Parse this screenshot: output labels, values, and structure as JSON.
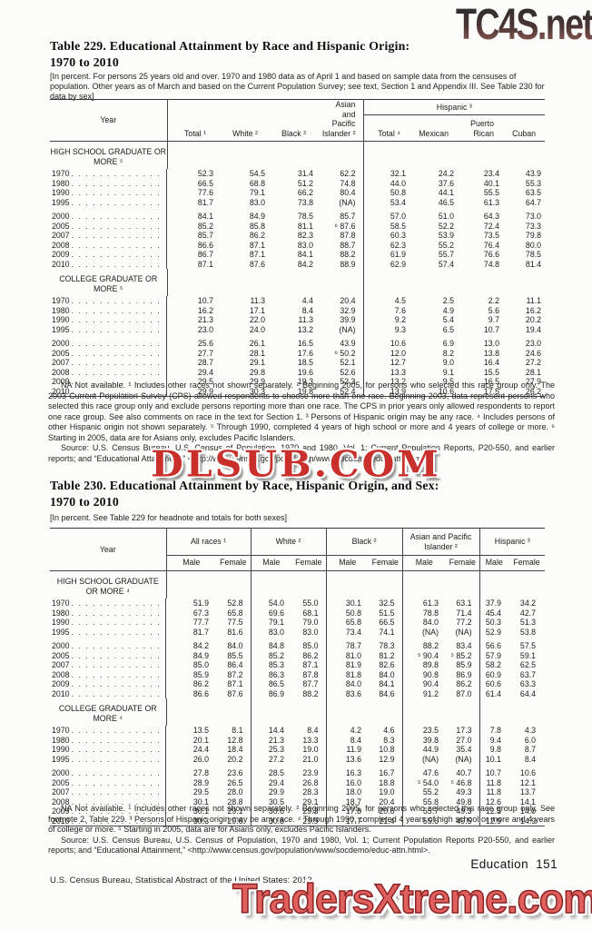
{
  "watermarks": {
    "top": "TC4S.net",
    "middle": "DLSUB.COM",
    "bottom": "TradersXtreme.com"
  },
  "page": {
    "page_label": "Education  151",
    "footer": "U.S. Census Bureau, Statistical Abstract of the United States: 2012"
  },
  "table229": {
    "title_line1": "Table 229. Educational Attainment by Race and Hispanic Origin:",
    "title_line2": "1970 to 2010",
    "headnote": "[In percent. For persons 25 years old and over. 1970 and 1980 data as of April 1 and based on sample data from the censuses of population. Other years as of March and based on the Current Population Survey; see text, Section 1 and Appendix III. See Table 230 for data by sex]",
    "col_year": "Year",
    "columns": [
      "Total ¹",
      "White ²",
      "Black ²",
      "Asian and Pacific Islander ²"
    ],
    "hispanic_label": "Hispanic ³",
    "hispanic_columns": [
      "Total ⁴",
      "Mexican",
      "Puerto Rican",
      "Cuban"
    ],
    "sections": [
      {
        "label": "HIGH SCHOOL GRADUATE OR MORE ⁵",
        "rows": [
          {
            "year": "1970",
            "values": [
              "52.3",
              "54.5",
              "31.4",
              "62.2",
              "32.1",
              "24.2",
              "23.4",
              "43.9"
            ]
          },
          {
            "year": "1980",
            "values": [
              "66.5",
              "68.8",
              "51.2",
              "74.8",
              "44.0",
              "37.6",
              "40.1",
              "55.3"
            ]
          },
          {
            "year": "1990",
            "values": [
              "77.6",
              "79.1",
              "66.2",
              "80.4",
              "50.8",
              "44.1",
              "55.5",
              "63.5"
            ]
          },
          {
            "year": "1995",
            "values": [
              "81.7",
              "83.0",
              "73.8",
              "(NA)",
              "53.4",
              "46.5",
              "61.3",
              "64.7"
            ]
          },
          {
            "year": "2000",
            "values": [
              "84.1",
              "84.9",
              "78.5",
              "85.7",
              "57.0",
              "51.0",
              "64.3",
              "73.0"
            ]
          },
          {
            "year": "2005",
            "values": [
              "85.2",
              "85.8",
              "81.1",
              "⁶ 87.6",
              "58.5",
              "52.2",
              "72.4",
              "73.3"
            ]
          },
          {
            "year": "2007",
            "values": [
              "85.7",
              "86.2",
              "82.3",
              "87.8",
              "60.3",
              "53.9",
              "73.5",
              "79.8"
            ]
          },
          {
            "year": "2008",
            "values": [
              "86.6",
              "87.1",
              "83.0",
              "88.7",
              "62.3",
              "55.2",
              "76.4",
              "80.0"
            ]
          },
          {
            "year": "2009",
            "values": [
              "86.7",
              "87.1",
              "84.1",
              "88.2",
              "61.9",
              "55.7",
              "76.6",
              "78.5"
            ]
          },
          {
            "year": "2010",
            "values": [
              "87.1",
              "87.6",
              "84.2",
              "88.9",
              "62.9",
              "57.4",
              "74.8",
              "81.4"
            ]
          }
        ]
      },
      {
        "label": "COLLEGE GRADUATE OR MORE ⁵",
        "rows": [
          {
            "year": "1970",
            "values": [
              "10.7",
              "11.3",
              "4.4",
              "20.4",
              "4.5",
              "2.5",
              "2.2",
              "11.1"
            ]
          },
          {
            "year": "1980",
            "values": [
              "16.2",
              "17.1",
              "8.4",
              "32.9",
              "7.6",
              "4.9",
              "5.6",
              "16.2"
            ]
          },
          {
            "year": "1990",
            "values": [
              "21.3",
              "22.0",
              "11.3",
              "39.9",
              "9.2",
              "5.4",
              "9.7",
              "20.2"
            ]
          },
          {
            "year": "1995",
            "values": [
              "23.0",
              "24.0",
              "13.2",
              "(NA)",
              "9.3",
              "6.5",
              "10.7",
              "19.4"
            ]
          },
          {
            "year": "2000",
            "values": [
              "25.6",
              "26.1",
              "16.5",
              "43.9",
              "10.6",
              "6.9",
              "13.0",
              "23.0"
            ]
          },
          {
            "year": "2005",
            "values": [
              "27.7",
              "28.1",
              "17.6",
              "⁶ 50.2",
              "12.0",
              "8.2",
              "13.8",
              "24.6"
            ]
          },
          {
            "year": "2007",
            "values": [
              "28.7",
              "29.1",
              "18.5",
              "52.1",
              "12.7",
              "9.0",
              "16.4",
              "27.2"
            ]
          },
          {
            "year": "2008",
            "values": [
              "29.4",
              "29.8",
              "19.6",
              "52.6",
              "13.3",
              "9.1",
              "15.5",
              "28.1"
            ]
          },
          {
            "year": "2009",
            "values": [
              "29.5",
              "29.9",
              "19.3",
              "52.3",
              "13.2",
              "9.5",
              "16.5",
              "27.9"
            ]
          },
          {
            "year": "2010",
            "values": [
              "29.9",
              "30.3",
              "19.8",
              "52.4",
              "13.9",
              "10.6",
              "17.5",
              "26.2"
            ]
          }
        ]
      }
    ],
    "footnotes": "NA Not available. ¹ Includes other races not shown separately. ² Beginning 2005, for persons who selected this race group only. The 2003 Current Population Survey (CPS) allowed respondents to choose more than one race. Beginning 2003, data represent persons who selected this race group only and exclude persons reporting more than one race. The CPS in prior years only allowed respondents to report one race group. See also comments on race in the text for Section 1. ³ Persons of Hispanic origin may be any race. ⁴ Includes persons of other Hispanic origin not shown separately. ⁵ Through 1990, completed 4 years of high school or more and 4 years of college or more. ⁶ Starting in 2005, data are for Asians only, excludes Pacific Islanders.",
    "source": "Source: U.S. Census Bureau, U.S. Census of Population, 1970 and 1980, Vol. 1; Current Population Reports, P20-550, and earlier reports; and “Educational Attainment,” <http://www.census.gov/population/www/socdemo/educ-attn.html>."
  },
  "table230": {
    "title_line1": "Table 230. Educational Attainment by Race, Hispanic Origin, and Sex:",
    "title_line2": "1970 to 2010",
    "headnote": "[In percent. See Table 229 for headnote and totals for both sexes]",
    "col_year": "Year",
    "groups": [
      "All races ¹",
      "White ²",
      "Black ²",
      "Asian and Pacific Islander ²",
      "Hispanic ³"
    ],
    "sub_male": "Male",
    "sub_female": "Female",
    "sections": [
      {
        "label": "HIGH SCHOOL GRADUATE OR MORE ⁴",
        "rows": [
          {
            "year": "1970",
            "values": [
              "51.9",
              "52.8",
              "54.0",
              "55.0",
              "30.1",
              "32.5",
              "61.3",
              "63.1",
              "37.9",
              "34.2"
            ]
          },
          {
            "year": "1980",
            "values": [
              "67.3",
              "65.8",
              "69.6",
              "68.1",
              "50.8",
              "51.5",
              "78.8",
              "71.4",
              "45.4",
              "42.7"
            ]
          },
          {
            "year": "1990",
            "values": [
              "77.7",
              "77.5",
              "79.1",
              "79.0",
              "65.8",
              "66.5",
              "84.0",
              "77.2",
              "50.3",
              "51.3"
            ]
          },
          {
            "year": "1995",
            "values": [
              "81.7",
              "81.6",
              "83.0",
              "83.0",
              "73.4",
              "74.1",
              "(NA)",
              "(NA)",
              "52.9",
              "53.8"
            ]
          },
          {
            "year": "2000",
            "values": [
              "84.2",
              "84.0",
              "84.8",
              "85.0",
              "78.7",
              "78.3",
              "88.2",
              "83.4",
              "56.6",
              "57.5"
            ]
          },
          {
            "year": "2005",
            "values": [
              "84.9",
              "85.5",
              "85.2",
              "86.2",
              "81.0",
              "81.2",
              "⁵ 90.4",
              "⁵ 85.2",
              "57.9",
              "59.1"
            ]
          },
          {
            "year": "2007",
            "values": [
              "85.0",
              "86.4",
              "85.3",
              "87.1",
              "81.9",
              "82.6",
              "89.8",
              "85.9",
              "58.2",
              "62.5"
            ]
          },
          {
            "year": "2008",
            "values": [
              "85.9",
              "87.2",
              "86.3",
              "87.8",
              "81.8",
              "84.0",
              "90.8",
              "86.9",
              "60.9",
              "63.7"
            ]
          },
          {
            "year": "2009",
            "values": [
              "86.2",
              "87.1",
              "86.5",
              "87.7",
              "84.0",
              "84.1",
              "90.4",
              "86.2",
              "60.6",
              "63.3"
            ]
          },
          {
            "year": "2010",
            "values": [
              "86.6",
              "87.6",
              "86.9",
              "88.2",
              "83.6",
              "84.6",
              "91.2",
              "87.0",
              "61.4",
              "64.4"
            ]
          }
        ]
      },
      {
        "label": "COLLEGE GRADUATE OR MORE ⁴",
        "rows": [
          {
            "year": "1970",
            "values": [
              "13.5",
              "8.1",
              "14.4",
              "8.4",
              "4.2",
              "4.6",
              "23.5",
              "17.3",
              "7.8",
              "4.3"
            ]
          },
          {
            "year": "1980",
            "values": [
              "20.1",
              "12.8",
              "21.3",
              "13.3",
              "8.4",
              "8.3",
              "39.8",
              "27.0",
              "9.4",
              "6.0"
            ]
          },
          {
            "year": "1990",
            "values": [
              "24.4",
              "18.4",
              "25.3",
              "19.0",
              "11.9",
              "10.8",
              "44.9",
              "35.4",
              "9.8",
              "8.7"
            ]
          },
          {
            "year": "1995",
            "values": [
              "26.0",
              "20.2",
              "27.2",
              "21.0",
              "13.6",
              "12.9",
              "(NA)",
              "(NA)",
              "10.1",
              "8.4"
            ]
          },
          {
            "year": "2000",
            "values": [
              "27.8",
              "23.6",
              "28.5",
              "23.9",
              "16.3",
              "16.7",
              "47.6",
              "40.7",
              "10.7",
              "10.6"
            ]
          },
          {
            "year": "2005",
            "values": [
              "28.9",
              "26.5",
              "29.4",
              "26.8",
              "16.0",
              "18.8",
              "⁵ 54.0",
              "⁵ 46.8",
              "11.8",
              "12.1"
            ]
          },
          {
            "year": "2007",
            "values": [
              "29.5",
              "28.0",
              "29.9",
              "28.3",
              "18.0",
              "19.0",
              "55.2",
              "49.3",
              "11.8",
              "13.7"
            ]
          },
          {
            "year": "2008",
            "values": [
              "30.1",
              "28.8",
              "30.5",
              "29.1",
              "18.7",
              "20.4",
              "55.8",
              "49.8",
              "12.6",
              "14.1"
            ]
          },
          {
            "year": "2009",
            "values": [
              "30.1",
              "29.1",
              "30.6",
              "29.3",
              "17.8",
              "20.6",
              "55.7",
              "49.3",
              "12.5",
              "14.0"
            ]
          },
          {
            "year": "2010",
            "values": [
              "30.3",
              "29.6",
              "30.8",
              "29.9",
              "17.7",
              "21.4",
              "55.6",
              "49.5",
              "12.9",
              "14.9"
            ]
          }
        ]
      }
    ],
    "footnotes": "NA Not available. ¹ Includes other races not shown separately. ² Beginning 2005, for persons who selected this race group only. See footnote 2, Table 229. ³ Persons of Hispanic origin may be any race. ⁴ Through 1990, completed 4 years of high school or more and 4 years of college or more. ⁵ Starting in 2005, data are for Asians only, excludes Pacific Islanders.",
    "source": "Source: U.S. Census Bureau, U.S. Census of Population, 1970 and 1980, Vol. 1; Current Population Reports P20-550, and earlier reports; and “Educational Attainment,” <http://www.census.gov/population/www/socdemo/educ-attn.html>."
  }
}
